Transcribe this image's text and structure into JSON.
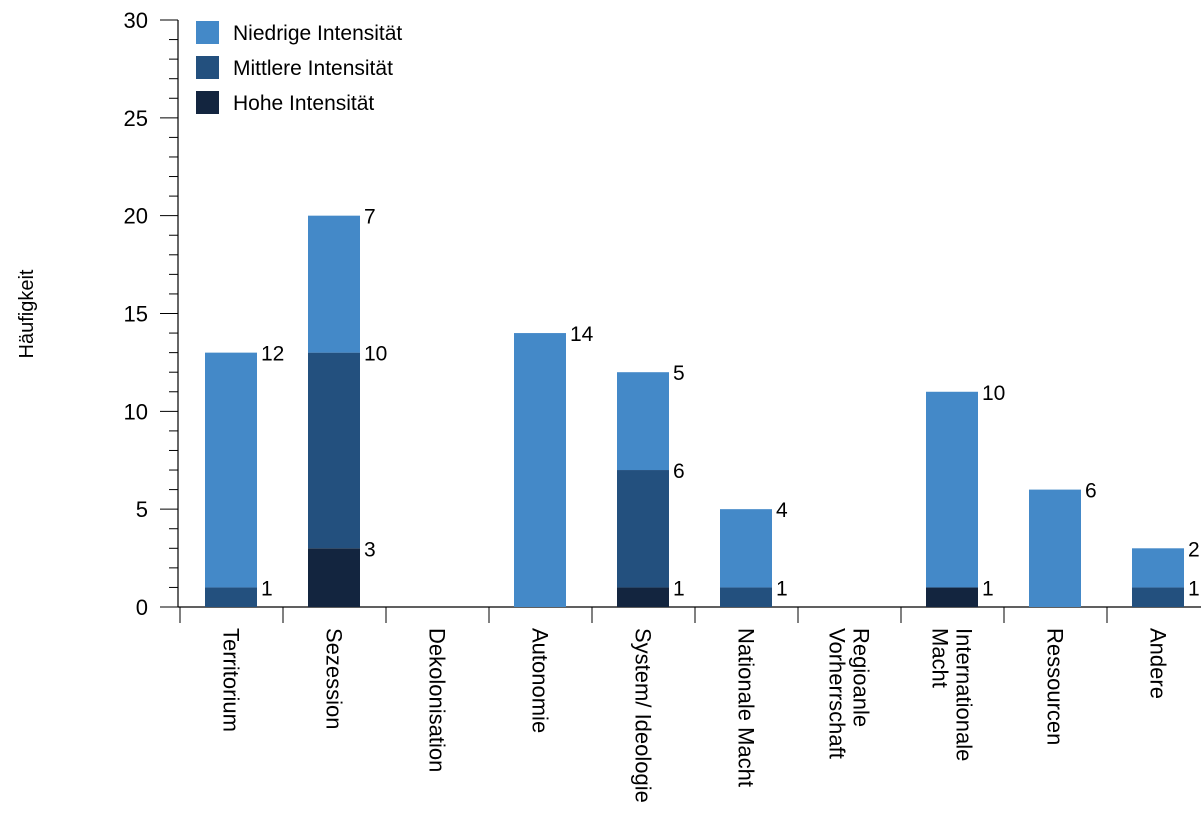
{
  "chart_data": {
    "type": "bar",
    "stacked": true,
    "ylabel": "Häufigkeit",
    "xlabel": "",
    "ylim": [
      0,
      30
    ],
    "yticks": [
      0,
      5,
      10,
      15,
      20,
      25,
      30
    ],
    "categories": [
      [
        "Territorium"
      ],
      [
        "Sezession"
      ],
      [
        "Dekolonisation"
      ],
      [
        "Autonomie"
      ],
      [
        "System/ Ideologie"
      ],
      [
        "Nationale Macht"
      ],
      [
        "Regioanle",
        "Vorherrschaft"
      ],
      [
        "Internationale",
        "Macht"
      ],
      [
        "Ressourcen"
      ],
      [
        "Andere"
      ]
    ],
    "series": [
      {
        "name": "Hohe Intensität",
        "color": "#13253f",
        "values": [
          0,
          3,
          0,
          0,
          1,
          0,
          0,
          1,
          0,
          0
        ]
      },
      {
        "name": "Mittlere Intensität",
        "color": "#23507e",
        "values": [
          1,
          10,
          0,
          0,
          6,
          1,
          0,
          0,
          0,
          1
        ]
      },
      {
        "name": "Niedrige Intensität",
        "color": "#4489c8",
        "values": [
          12,
          7,
          0,
          14,
          5,
          4,
          0,
          10,
          6,
          2
        ]
      }
    ],
    "legend": {
      "placement": "top-left",
      "order": [
        "Niedrige Intensität",
        "Mittlere Intensität",
        "Hohe Intensität"
      ]
    },
    "grid": false
  }
}
